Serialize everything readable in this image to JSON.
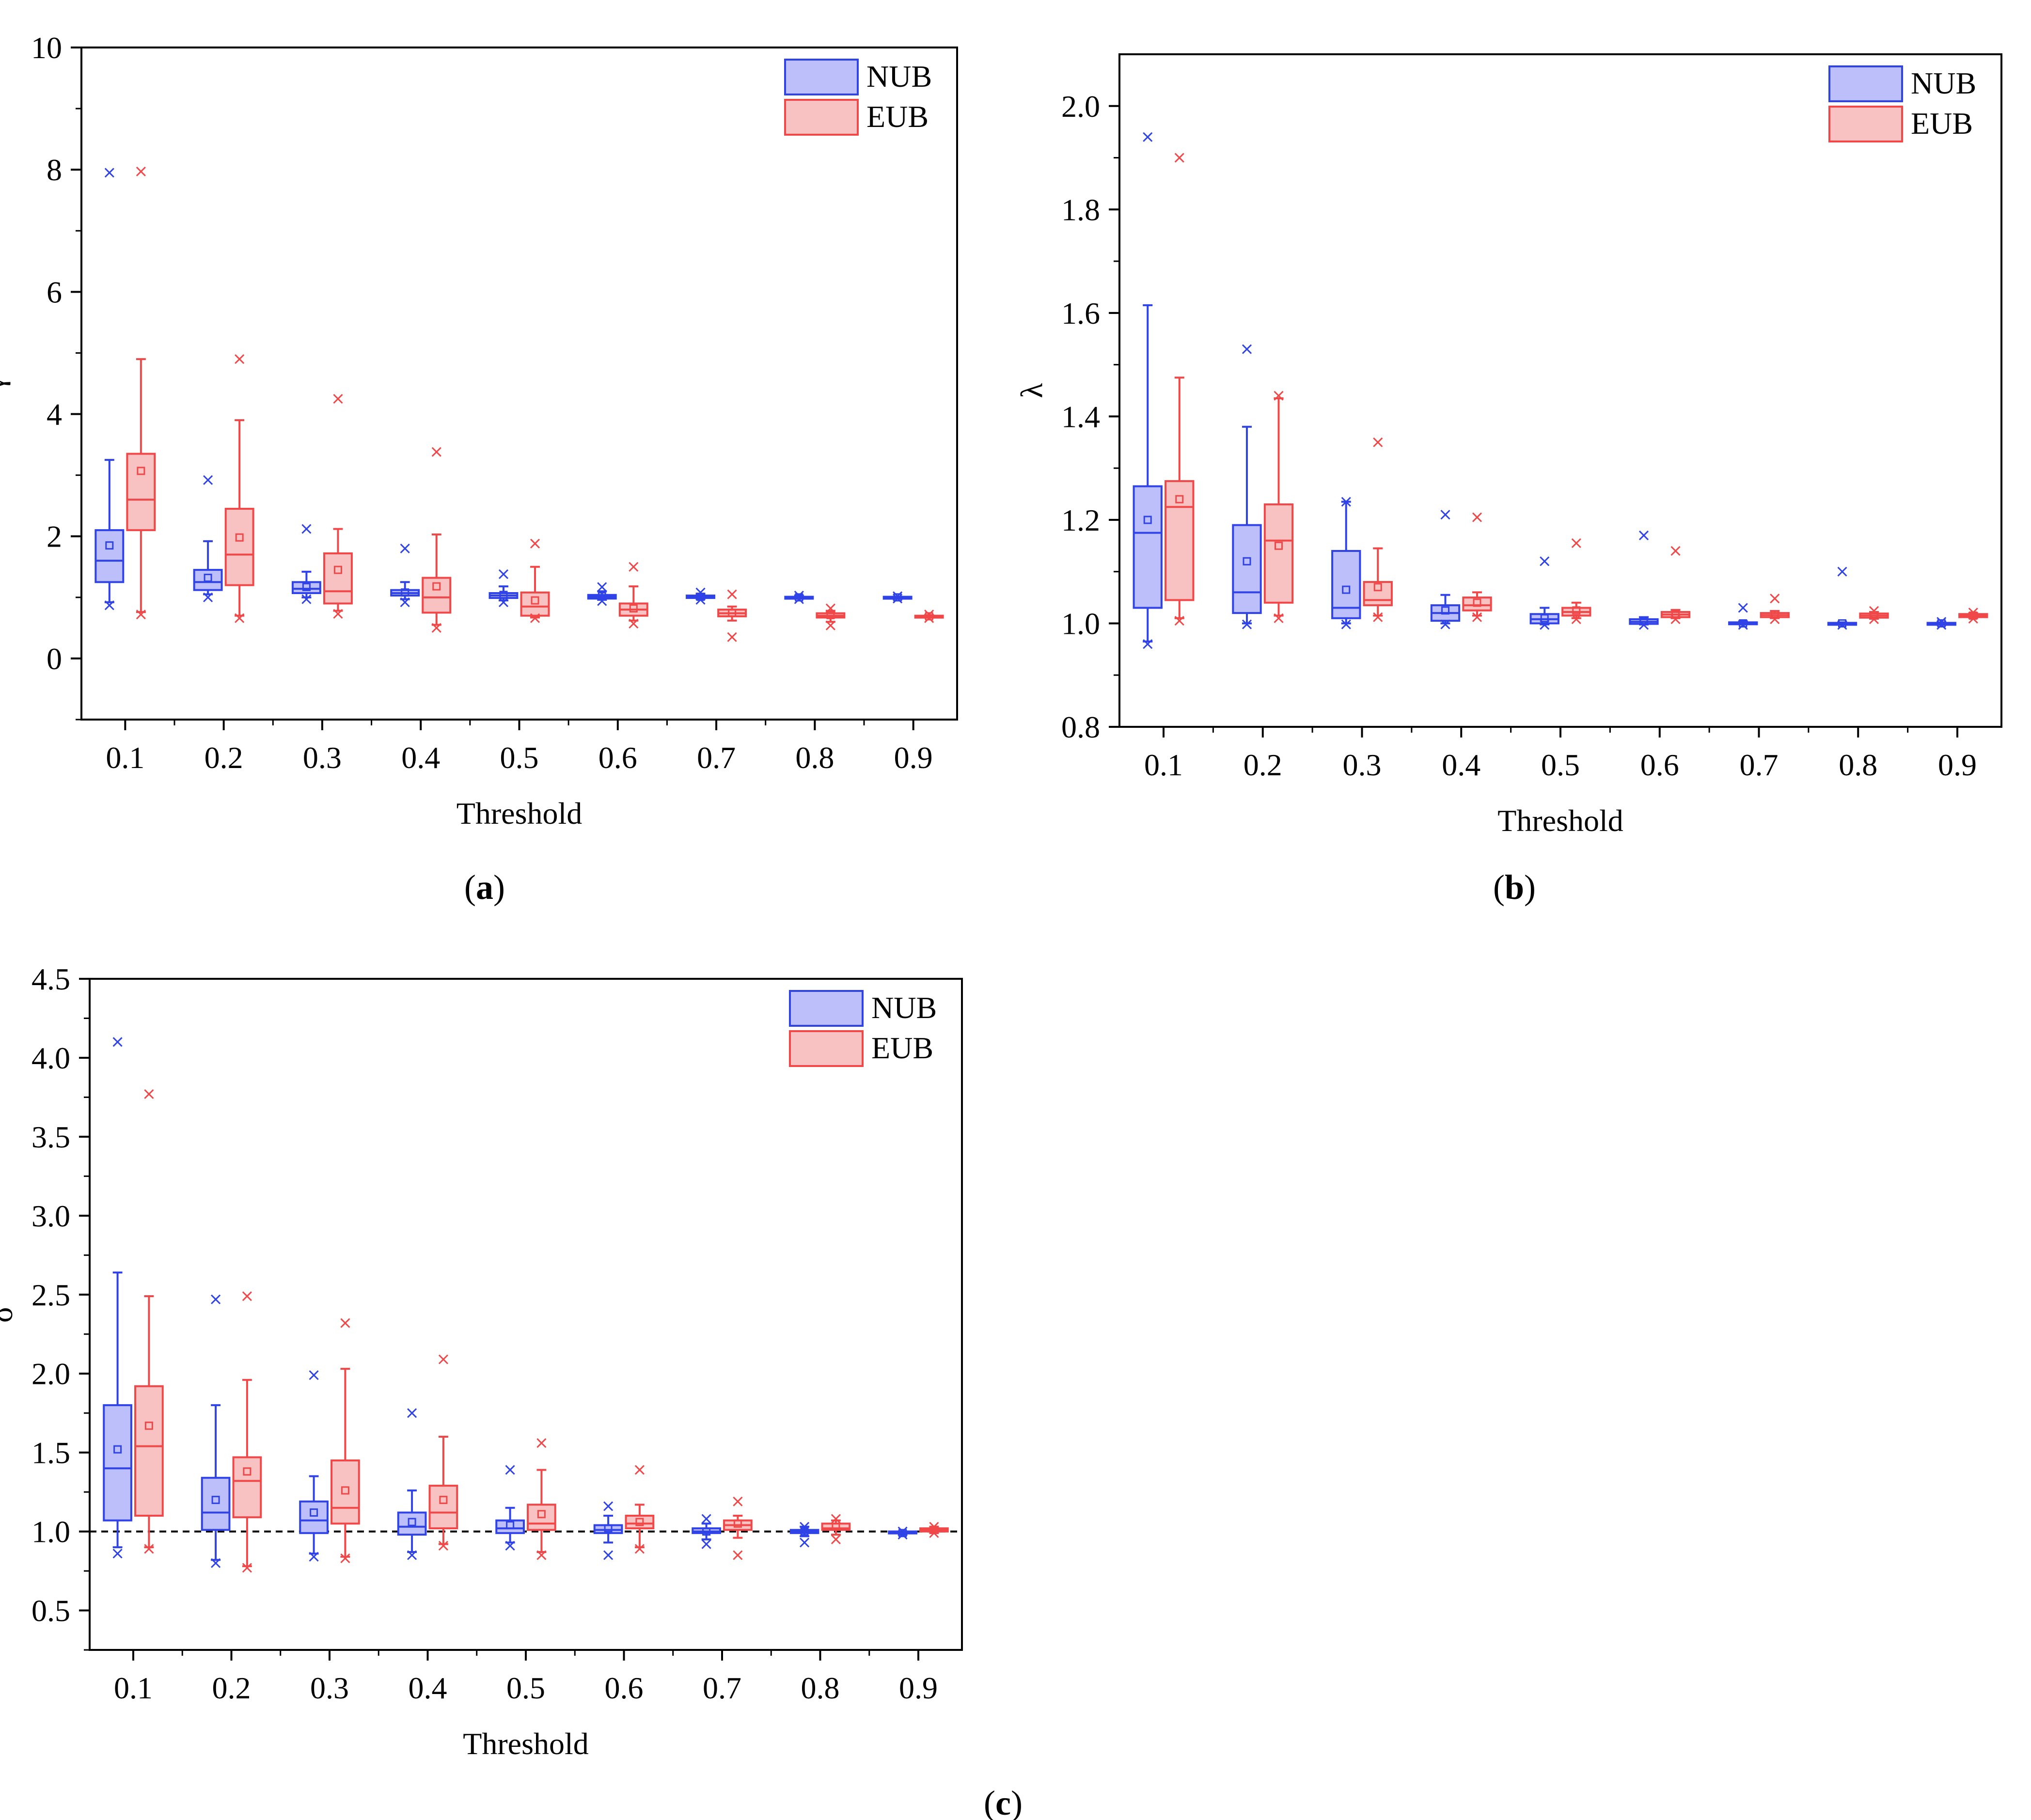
{
  "chart_data": [
    {
      "panel": "a",
      "type": "box",
      "caption_letter": "a",
      "xlabel": "Threshold",
      "ylabel": "γ",
      "ylim": [
        -1,
        10
      ],
      "yticks": [
        0,
        2,
        4,
        6,
        8,
        10
      ],
      "ytick_labels": [
        "0",
        "2",
        "4",
        "6",
        "8",
        "10"
      ],
      "minor_y": true,
      "reference_line": null,
      "categories": [
        "0.1",
        "0.2",
        "0.3",
        "0.4",
        "0.5",
        "0.6",
        "0.7",
        "0.8",
        "0.9"
      ],
      "legend": {
        "position": "top-right",
        "entries": [
          "NUB",
          "EUB"
        ]
      },
      "series": [
        {
          "name": "NUB",
          "boxes": [
            {
              "q1": 1.25,
              "median": 1.6,
              "q3": 2.1,
              "mean": 1.85,
              "wlo": 0.92,
              "whi": 3.25,
              "max": 7.95,
              "min": 0.87
            },
            {
              "q1": 1.12,
              "median": 1.25,
              "q3": 1.45,
              "mean": 1.32,
              "wlo": 1.05,
              "whi": 1.92,
              "max": 2.92,
              "min": 1.0
            },
            {
              "q1": 1.07,
              "median": 1.14,
              "q3": 1.25,
              "mean": 1.17,
              "wlo": 1.0,
              "whi": 1.42,
              "max": 2.12,
              "min": 0.97
            },
            {
              "q1": 1.03,
              "median": 1.07,
              "q3": 1.12,
              "mean": 1.08,
              "wlo": 0.97,
              "whi": 1.25,
              "max": 1.8,
              "min": 0.92
            },
            {
              "q1": 0.99,
              "median": 1.03,
              "q3": 1.07,
              "mean": 1.04,
              "wlo": 0.95,
              "whi": 1.18,
              "max": 1.38,
              "min": 0.92
            },
            {
              "q1": 0.98,
              "median": 1.01,
              "q3": 1.04,
              "mean": 1.02,
              "wlo": 0.96,
              "whi": 1.1,
              "max": 1.17,
              "min": 0.94
            },
            {
              "q1": 0.99,
              "median": 1.0,
              "q3": 1.03,
              "mean": 1.01,
              "wlo": 0.97,
              "whi": 1.06,
              "max": 1.08,
              "min": 0.96
            },
            {
              "q1": 0.99,
              "median": 1.0,
              "q3": 1.01,
              "mean": 1.0,
              "wlo": 0.98,
              "whi": 1.03,
              "max": 1.03,
              "min": 0.97
            },
            {
              "q1": 0.99,
              "median": 1.0,
              "q3": 1.01,
              "mean": 1.0,
              "wlo": 0.99,
              "whi": 1.01,
              "max": 1.02,
              "min": 0.98
            }
          ]
        },
        {
          "name": "EUB",
          "boxes": [
            {
              "q1": 2.1,
              "median": 2.6,
              "q3": 3.35,
              "mean": 3.07,
              "wlo": 0.76,
              "whi": 4.9,
              "max": 7.97,
              "min": 0.72
            },
            {
              "q1": 1.2,
              "median": 1.7,
              "q3": 2.45,
              "mean": 1.98,
              "wlo": 0.7,
              "whi": 3.9,
              "max": 4.9,
              "min": 0.66
            },
            {
              "q1": 0.9,
              "median": 1.1,
              "q3": 1.72,
              "mean": 1.45,
              "wlo": 0.78,
              "whi": 2.12,
              "max": 4.25,
              "min": 0.73
            },
            {
              "q1": 0.75,
              "median": 1.0,
              "q3": 1.32,
              "mean": 1.18,
              "wlo": 0.55,
              "whi": 2.03,
              "max": 3.38,
              "min": 0.5
            },
            {
              "q1": 0.7,
              "median": 0.85,
              "q3": 1.08,
              "mean": 0.95,
              "wlo": 0.67,
              "whi": 1.5,
              "max": 1.88,
              "min": 0.66
            },
            {
              "q1": 0.7,
              "median": 0.8,
              "q3": 0.9,
              "mean": 0.82,
              "wlo": 0.62,
              "whi": 1.18,
              "max": 1.5,
              "min": 0.57
            },
            {
              "q1": 0.69,
              "median": 0.74,
              "q3": 0.8,
              "mean": 0.75,
              "wlo": 0.62,
              "whi": 0.85,
              "max": 1.05,
              "min": 0.35
            },
            {
              "q1": 0.67,
              "median": 0.7,
              "q3": 0.74,
              "mean": 0.71,
              "wlo": 0.6,
              "whi": 0.78,
              "max": 0.82,
              "min": 0.54
            },
            {
              "q1": 0.68,
              "median": 0.69,
              "q3": 0.7,
              "mean": 0.69,
              "wlo": 0.67,
              "whi": 0.71,
              "max": 0.72,
              "min": 0.66
            }
          ]
        }
      ]
    },
    {
      "panel": "b",
      "type": "box",
      "caption_letter": "b",
      "xlabel": "Threshold",
      "ylabel": "λ",
      "ylim": [
        0.8,
        2.1
      ],
      "yticks": [
        0.8,
        1.0,
        1.2,
        1.4,
        1.6,
        1.8,
        2.0
      ],
      "ytick_labels": [
        "0.8",
        "1.0",
        "1.2",
        "1.4",
        "1.6",
        "1.8",
        "2.0"
      ],
      "minor_y": true,
      "reference_line": null,
      "categories": [
        "0.1",
        "0.2",
        "0.3",
        "0.4",
        "0.5",
        "0.6",
        "0.7",
        "0.8",
        "0.9"
      ],
      "legend": {
        "position": "top-right",
        "entries": [
          "NUB",
          "EUB"
        ]
      },
      "series": [
        {
          "name": "NUB",
          "boxes": [
            {
              "q1": 1.03,
              "median": 1.175,
              "q3": 1.265,
              "mean": 1.2,
              "wlo": 0.965,
              "whi": 1.615,
              "max": 1.94,
              "min": 0.96
            },
            {
              "q1": 1.02,
              "median": 1.06,
              "q3": 1.19,
              "mean": 1.12,
              "wlo": 1.0,
              "whi": 1.38,
              "max": 1.53,
              "min": 0.998
            },
            {
              "q1": 1.01,
              "median": 1.03,
              "q3": 1.14,
              "mean": 1.065,
              "wlo": 1.0,
              "whi": 1.235,
              "max": 1.235,
              "min": 0.998
            },
            {
              "q1": 1.005,
              "median": 1.02,
              "q3": 1.035,
              "mean": 1.025,
              "wlo": 1.0,
              "whi": 1.055,
              "max": 1.21,
              "min": 0.998
            },
            {
              "q1": 1.0,
              "median": 1.008,
              "q3": 1.018,
              "mean": 1.01,
              "wlo": 0.998,
              "whi": 1.03,
              "max": 1.12,
              "min": 0.997
            },
            {
              "q1": 0.999,
              "median": 1.003,
              "q3": 1.008,
              "mean": 1.004,
              "wlo": 0.998,
              "whi": 1.012,
              "max": 1.17,
              "min": 0.997
            },
            {
              "q1": 0.999,
              "median": 1.0,
              "q3": 1.002,
              "mean": 1.0,
              "wlo": 0.998,
              "whi": 1.004,
              "max": 1.03,
              "min": 0.997
            },
            {
              "q1": 0.999,
              "median": 1.0,
              "q3": 1.001,
              "mean": 1.0,
              "wlo": 0.998,
              "whi": 1.002,
              "max": 1.1,
              "min": 0.997
            },
            {
              "q1": 0.999,
              "median": 1.0,
              "q3": 1.001,
              "mean": 1.0,
              "wlo": 0.998,
              "whi": 1.002,
              "max": 1.003,
              "min": 0.997
            }
          ]
        },
        {
          "name": "EUB",
          "boxes": [
            {
              "q1": 1.045,
              "median": 1.225,
              "q3": 1.275,
              "mean": 1.24,
              "wlo": 1.01,
              "whi": 1.475,
              "max": 1.9,
              "min": 1.005
            },
            {
              "q1": 1.04,
              "median": 1.16,
              "q3": 1.23,
              "mean": 1.15,
              "wlo": 1.015,
              "whi": 1.435,
              "max": 1.44,
              "min": 1.01
            },
            {
              "q1": 1.035,
              "median": 1.045,
              "q3": 1.08,
              "mean": 1.07,
              "wlo": 1.015,
              "whi": 1.145,
              "max": 1.35,
              "min": 1.012
            },
            {
              "q1": 1.025,
              "median": 1.035,
              "q3": 1.05,
              "mean": 1.04,
              "wlo": 1.015,
              "whi": 1.06,
              "max": 1.205,
              "min": 1.012
            },
            {
              "q1": 1.015,
              "median": 1.022,
              "q3": 1.03,
              "mean": 1.025,
              "wlo": 1.01,
              "whi": 1.04,
              "max": 1.155,
              "min": 1.008
            },
            {
              "q1": 1.012,
              "median": 1.017,
              "q3": 1.022,
              "mean": 1.018,
              "wlo": 1.01,
              "whi": 1.026,
              "max": 1.14,
              "min": 1.008
            },
            {
              "q1": 1.012,
              "median": 1.016,
              "q3": 1.02,
              "mean": 1.017,
              "wlo": 1.01,
              "whi": 1.024,
              "max": 1.048,
              "min": 1.008
            },
            {
              "q1": 1.011,
              "median": 1.015,
              "q3": 1.019,
              "mean": 1.015,
              "wlo": 1.009,
              "whi": 1.022,
              "max": 1.024,
              "min": 1.008
            },
            {
              "q1": 1.012,
              "median": 1.015,
              "q3": 1.018,
              "mean": 1.015,
              "wlo": 1.01,
              "whi": 1.02,
              "max": 1.021,
              "min": 1.009
            }
          ]
        }
      ]
    },
    {
      "panel": "c",
      "type": "box",
      "caption_letter": "c",
      "xlabel": "Threshold",
      "ylabel": "σ",
      "ylim": [
        0.25,
        4.5
      ],
      "yticks": [
        0.5,
        1.0,
        1.5,
        2.0,
        2.5,
        3.0,
        3.5,
        4.0,
        4.5
      ],
      "ytick_labels": [
        "0.5",
        "1.0",
        "1.5",
        "2.0",
        "2.5",
        "3.0",
        "3.5",
        "4.0",
        "4.5"
      ],
      "minor_y": true,
      "reference_line": {
        "y": 1.0,
        "style": "dashed"
      },
      "categories": [
        "0.1",
        "0.2",
        "0.3",
        "0.4",
        "0.5",
        "0.6",
        "0.7",
        "0.8",
        "0.9"
      ],
      "legend": {
        "position": "top-right",
        "entries": [
          "NUB",
          "EUB"
        ]
      },
      "series": [
        {
          "name": "NUB",
          "boxes": [
            {
              "q1": 1.07,
              "median": 1.4,
              "q3": 1.8,
              "mean": 1.52,
              "wlo": 0.9,
              "whi": 2.64,
              "max": 4.1,
              "min": 0.86
            },
            {
              "q1": 1.01,
              "median": 1.12,
              "q3": 1.34,
              "mean": 1.2,
              "wlo": 0.82,
              "whi": 1.8,
              "max": 2.47,
              "min": 0.8
            },
            {
              "q1": 0.99,
              "median": 1.07,
              "q3": 1.19,
              "mean": 1.12,
              "wlo": 0.86,
              "whi": 1.35,
              "max": 1.99,
              "min": 0.84
            },
            {
              "q1": 0.98,
              "median": 1.03,
              "q3": 1.12,
              "mean": 1.06,
              "wlo": 0.87,
              "whi": 1.26,
              "max": 1.75,
              "min": 0.85
            },
            {
              "q1": 0.99,
              "median": 1.02,
              "q3": 1.07,
              "mean": 1.04,
              "wlo": 0.93,
              "whi": 1.15,
              "max": 1.39,
              "min": 0.91
            },
            {
              "q1": 0.99,
              "median": 1.01,
              "q3": 1.04,
              "mean": 1.02,
              "wlo": 0.93,
              "whi": 1.1,
              "max": 1.16,
              "min": 0.85
            },
            {
              "q1": 0.99,
              "median": 1.0,
              "q3": 1.02,
              "mean": 1.0,
              "wlo": 0.95,
              "whi": 1.05,
              "max": 1.08,
              "min": 0.92
            },
            {
              "q1": 0.99,
              "median": 1.0,
              "q3": 1.01,
              "mean": 1.0,
              "wlo": 0.97,
              "whi": 1.03,
              "max": 1.03,
              "min": 0.93
            },
            {
              "q1": 0.99,
              "median": 1.0,
              "q3": 1.0,
              "mean": 0.99,
              "wlo": 0.98,
              "whi": 1.0,
              "max": 1.0,
              "min": 0.98
            }
          ]
        },
        {
          "name": "EUB",
          "boxes": [
            {
              "q1": 1.1,
              "median": 1.54,
              "q3": 1.92,
              "mean": 1.67,
              "wlo": 0.9,
              "whi": 2.49,
              "max": 3.77,
              "min": 0.89
            },
            {
              "q1": 1.09,
              "median": 1.32,
              "q3": 1.47,
              "mean": 1.38,
              "wlo": 0.78,
              "whi": 1.96,
              "max": 2.49,
              "min": 0.77
            },
            {
              "q1": 1.05,
              "median": 1.15,
              "q3": 1.45,
              "mean": 1.26,
              "wlo": 0.84,
              "whi": 2.03,
              "max": 2.32,
              "min": 0.83
            },
            {
              "q1": 1.02,
              "median": 1.12,
              "q3": 1.29,
              "mean": 1.2,
              "wlo": 0.92,
              "whi": 1.6,
              "max": 2.09,
              "min": 0.91
            },
            {
              "q1": 1.01,
              "median": 1.05,
              "q3": 1.17,
              "mean": 1.11,
              "wlo": 0.87,
              "whi": 1.39,
              "max": 1.56,
              "min": 0.85
            },
            {
              "q1": 1.02,
              "median": 1.05,
              "q3": 1.1,
              "mean": 1.06,
              "wlo": 0.9,
              "whi": 1.17,
              "max": 1.39,
              "min": 0.89
            },
            {
              "q1": 1.01,
              "median": 1.04,
              "q3": 1.07,
              "mean": 1.05,
              "wlo": 0.96,
              "whi": 1.1,
              "max": 1.19,
              "min": 0.85
            },
            {
              "q1": 1.01,
              "median": 1.02,
              "q3": 1.05,
              "mean": 1.03,
              "wlo": 0.98,
              "whi": 1.07,
              "max": 1.08,
              "min": 0.95
            },
            {
              "q1": 1.0,
              "median": 1.01,
              "q3": 1.02,
              "mean": 1.01,
              "wlo": 0.99,
              "whi": 1.03,
              "max": 1.03,
              "min": 0.99
            }
          ]
        }
      ]
    }
  ],
  "colors": {
    "NUB_edge": "#2f43e6",
    "NUB_fill": "#bcbffa",
    "EUB_edge": "#f04848",
    "EUB_fill": "#f9c2c2",
    "axis": "#000000",
    "reference_line": "#000000"
  }
}
